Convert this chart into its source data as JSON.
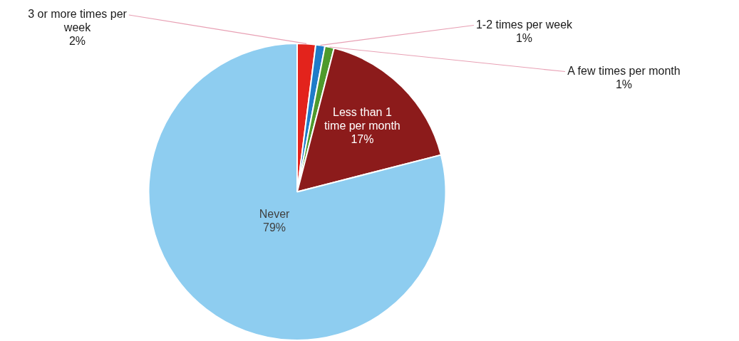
{
  "chart_data": {
    "type": "pie",
    "categories": [
      "3 or more times per week",
      "1-2 times per week",
      "A few times per month",
      "Less than 1 time per month",
      "Never"
    ],
    "values": [
      2,
      1,
      1,
      17,
      79
    ],
    "value_labels": [
      "2%",
      "1%",
      "1%",
      "17%",
      "79%"
    ],
    "colors": [
      "#e3231c",
      "#1f7cc8",
      "#4e9a2c",
      "#8c1b1b",
      "#8ecdf0"
    ],
    "legend": false
  }
}
